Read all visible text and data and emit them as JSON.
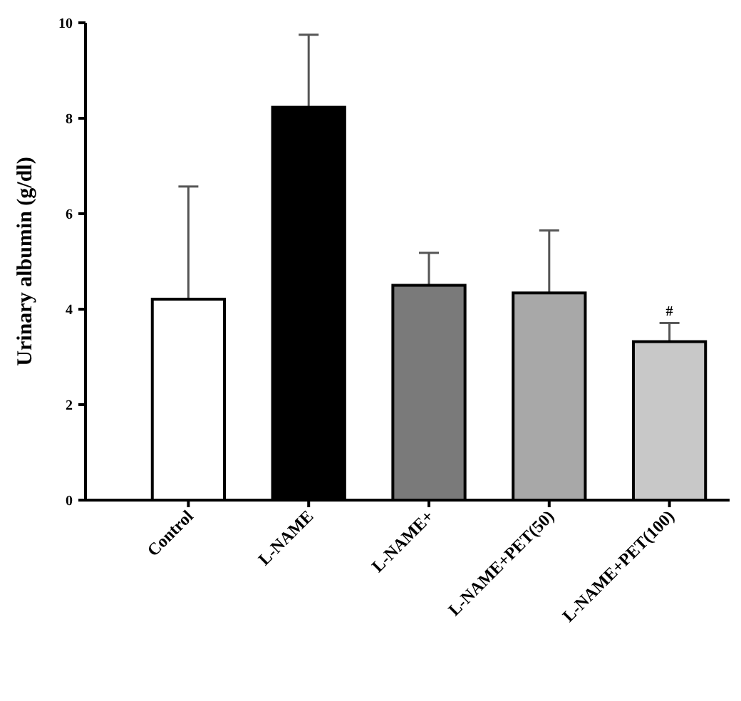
{
  "chart_data": {
    "type": "bar",
    "ylabel": "Urinary albumin (g/dl)",
    "categories": [
      "Control",
      "L-NAME",
      "L-NAME+",
      "L-NAME+PET(50)",
      "L-NAME+PET(100)"
    ],
    "values": [
      4.21,
      8.23,
      4.5,
      4.34,
      3.32
    ],
    "colors": [
      "#ffffff",
      "#000000",
      "#7a7a7a",
      "#a8a8a8",
      "#c8c8c8"
    ],
    "errors": [
      2.36,
      1.52,
      0.68,
      1.31,
      0.39
    ],
    "ylim": [
      0,
      10
    ],
    "yticks": [
      0,
      2,
      4,
      6,
      8,
      10
    ],
    "grid": false,
    "annotations": [
      {
        "text": "#",
        "x": "L-NAME+PET(100)",
        "y": 3.71
      }
    ]
  }
}
